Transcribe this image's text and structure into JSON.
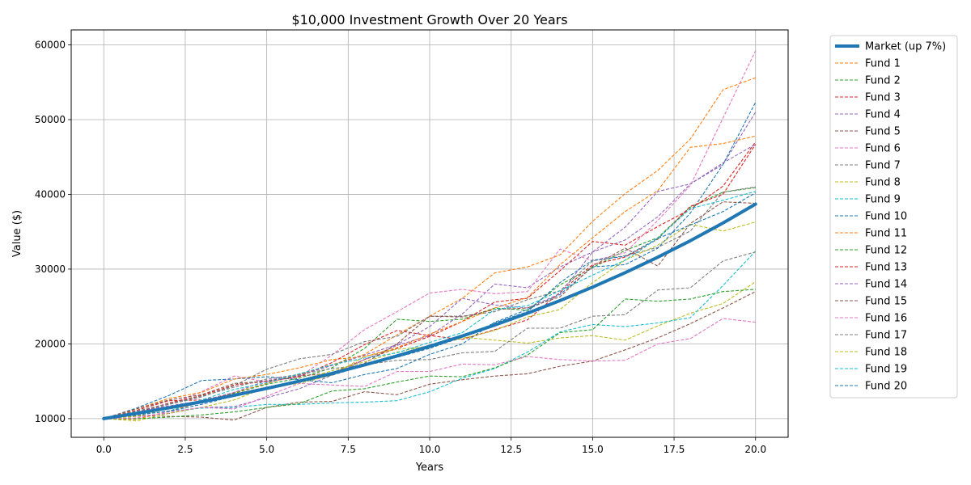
{
  "chart_data": {
    "type": "line",
    "title": "$10,000 Investment Growth Over 20 Years",
    "xlabel": "Years",
    "ylabel": "Value ($)",
    "xlim": [
      -1,
      21
    ],
    "ylim": [
      7500,
      62000
    ],
    "x_ticks": [
      0.0,
      2.5,
      5.0,
      7.5,
      10.0,
      12.5,
      15.0,
      17.5,
      20.0
    ],
    "y_ticks": [
      10000,
      20000,
      30000,
      40000,
      50000,
      60000
    ],
    "grid": true,
    "legend_position": "outside-right",
    "x": [
      0,
      1,
      2,
      3,
      4,
      5,
      6,
      7,
      8,
      9,
      10,
      11,
      12,
      13,
      14,
      15,
      16,
      17,
      18,
      19,
      20
    ],
    "series": [
      {
        "name": "Market (up 7%)",
        "color": "#1f77b4",
        "style": "solid-thick",
        "values": [
          10000,
          10700,
          11449,
          12250,
          13108,
          14026,
          15007,
          16058,
          17182,
          18385,
          19672,
          21049,
          22522,
          24098,
          25785,
          27590,
          29522,
          31588,
          33799,
          36165,
          38697
        ]
      },
      {
        "name": "Fund 1",
        "color": "#ff7f0e",
        "style": "dashed",
        "values": [
          10000,
          9900,
          11000,
          12200,
          13500,
          14700,
          15900,
          17200,
          18600,
          21200,
          23700,
          26100,
          29500,
          30300,
          31900,
          36400,
          40100,
          43200,
          47400,
          54000,
          55600
        ]
      },
      {
        "name": "Fund 2",
        "color": "#2ca02c",
        "style": "dashed",
        "values": [
          10000,
          10600,
          11400,
          12300,
          13400,
          14600,
          15400,
          16800,
          19400,
          23300,
          23000,
          23300,
          24800,
          24500,
          27900,
          30200,
          32500,
          34200,
          38300,
          40300,
          40900
        ]
      },
      {
        "name": "Fund 3",
        "color": "#d62728",
        "style": "dashed",
        "values": [
          10000,
          11100,
          12400,
          12500,
          13300,
          14200,
          15100,
          16100,
          17900,
          19400,
          21000,
          23000,
          25600,
          26100,
          29800,
          33700,
          33200,
          35700,
          38000,
          41100,
          47000
        ]
      },
      {
        "name": "Fund 4",
        "color": "#9467bd",
        "style": "dashed",
        "values": [
          10000,
          10300,
          10700,
          11500,
          11600,
          12800,
          14000,
          15800,
          17900,
          19800,
          21100,
          24000,
          28000,
          27500,
          30300,
          32300,
          33900,
          37000,
          41400,
          44000,
          51000
        ]
      },
      {
        "name": "Fund 5",
        "color": "#8c564b",
        "style": "dashed",
        "values": [
          10000,
          10400,
          10300,
          10200,
          9800,
          11500,
          12200,
          12300,
          13600,
          13200,
          14600,
          15200,
          15700,
          16000,
          17000,
          17700,
          19200,
          20800,
          22700,
          24800,
          27000
        ]
      },
      {
        "name": "Fund 6",
        "color": "#e377c2",
        "style": "dashed",
        "values": [
          10000,
          10700,
          11900,
          13600,
          15700,
          14900,
          15600,
          18500,
          21900,
          24300,
          26800,
          27300,
          26700,
          27000,
          32700,
          31100,
          32200,
          36500,
          41200,
          50200,
          59200
        ]
      },
      {
        "name": "Fund 7",
        "color": "#7f7f7f",
        "style": "dashed",
        "values": [
          10000,
          10900,
          11900,
          12900,
          14400,
          16600,
          18000,
          18600,
          20300,
          21000,
          23700,
          23700,
          24300,
          25900,
          27100,
          31100,
          31800,
          32900,
          35100,
          40300,
          41000
        ]
      },
      {
        "name": "Fund 8",
        "color": "#bcbd22",
        "style": "dashed",
        "values": [
          10000,
          9700,
          10700,
          11500,
          12500,
          14200,
          14700,
          15800,
          18300,
          19300,
          19600,
          20900,
          20500,
          20100,
          20800,
          21100,
          20500,
          22400,
          24100,
          25400,
          28300
        ]
      },
      {
        "name": "Fund 9",
        "color": "#17becf",
        "style": "dashed",
        "values": [
          10000,
          10500,
          11000,
          11400,
          11500,
          11900,
          11900,
          12100,
          12200,
          12400,
          13600,
          15400,
          16700,
          18900,
          21600,
          22600,
          22300,
          22800,
          23500,
          27800,
          32400
        ]
      },
      {
        "name": "Fund 10",
        "color": "#1f77b4",
        "style": "dashed",
        "values": [
          10000,
          11400,
          13100,
          15100,
          15300,
          15600,
          15200,
          14800,
          15900,
          16700,
          18600,
          20000,
          22900,
          24600,
          26600,
          30300,
          30600,
          32800,
          37500,
          44000,
          52300
        ]
      },
      {
        "name": "Fund 11",
        "color": "#ff7f0e",
        "style": "dashed",
        "values": [
          10000,
          11300,
          12700,
          13500,
          15300,
          15900,
          16800,
          17900,
          18300,
          19500,
          21300,
          23000,
          24800,
          26200,
          30600,
          34200,
          37700,
          40500,
          46300,
          46800,
          47800
        ]
      },
      {
        "name": "Fund 12",
        "color": "#2ca02c",
        "style": "dashed",
        "values": [
          10000,
          10000,
          10200,
          10500,
          10900,
          11500,
          12000,
          13700,
          14000,
          14900,
          15700,
          15600,
          16800,
          18500,
          21500,
          21900,
          26000,
          25700,
          26000,
          27000,
          27300
        ]
      },
      {
        "name": "Fund 13",
        "color": "#d62728",
        "style": "dashed",
        "values": [
          10000,
          10800,
          12100,
          13100,
          14500,
          15000,
          15600,
          17500,
          19900,
          21800,
          21100,
          20600,
          21900,
          23200,
          26900,
          30600,
          31600,
          34000,
          38400,
          40000,
          46700
        ]
      },
      {
        "name": "Fund 14",
        "color": "#9467bd",
        "style": "dashed",
        "values": [
          10000,
          10900,
          11700,
          12400,
          13500,
          15100,
          15800,
          17100,
          18500,
          19900,
          22300,
          26100,
          25200,
          24800,
          26700,
          32300,
          35600,
          40400,
          41400,
          44200,
          46700
        ]
      },
      {
        "name": "Fund 15",
        "color": "#8c564b",
        "style": "dashed",
        "values": [
          10000,
          11300,
          12500,
          13200,
          14700,
          15000,
          15700,
          16100,
          17400,
          20000,
          23700,
          23600,
          24600,
          24800,
          26300,
          30400,
          32800,
          30400,
          36100,
          39000,
          38800
        ]
      },
      {
        "name": "Fund 16",
        "color": "#e377c2",
        "style": "dashed",
        "values": [
          10000,
          10100,
          10900,
          11500,
          11300,
          13000,
          14700,
          14500,
          14300,
          16300,
          16300,
          17300,
          17200,
          18300,
          17900,
          17700,
          17800,
          20000,
          20700,
          23400,
          22900
        ]
      },
      {
        "name": "Fund 17",
        "color": "#7f7f7f",
        "style": "dashed",
        "values": [
          10000,
          11000,
          12000,
          13000,
          14200,
          15300,
          15900,
          16700,
          17200,
          17800,
          17900,
          18800,
          19000,
          22100,
          22100,
          23700,
          23900,
          27200,
          27500,
          31100,
          32300
        ]
      },
      {
        "name": "Fund 18",
        "color": "#bcbd22",
        "style": "dashed",
        "values": [
          10000,
          10300,
          11400,
          12100,
          13100,
          14100,
          15100,
          16400,
          17600,
          18900,
          19800,
          20700,
          21800,
          23600,
          24600,
          28200,
          31200,
          33200,
          36000,
          35100,
          36300
        ]
      },
      {
        "name": "Fund 19",
        "color": "#17becf",
        "style": "dashed",
        "values": [
          10000,
          10500,
          11000,
          12500,
          13900,
          14800,
          16000,
          17200,
          18100,
          18800,
          20200,
          21500,
          24600,
          25100,
          27100,
          29200,
          31200,
          34100,
          38100,
          39200,
          40400
        ]
      },
      {
        "name": "Fund 20",
        "color": "#1f77b4",
        "style": "dashed",
        "values": [
          10000,
          10500,
          11000,
          11900,
          13000,
          14200,
          14900,
          15800,
          17100,
          18200,
          19400,
          20900,
          22800,
          24300,
          28200,
          31200,
          31700,
          34100,
          35900,
          37700,
          40200
        ]
      }
    ]
  }
}
